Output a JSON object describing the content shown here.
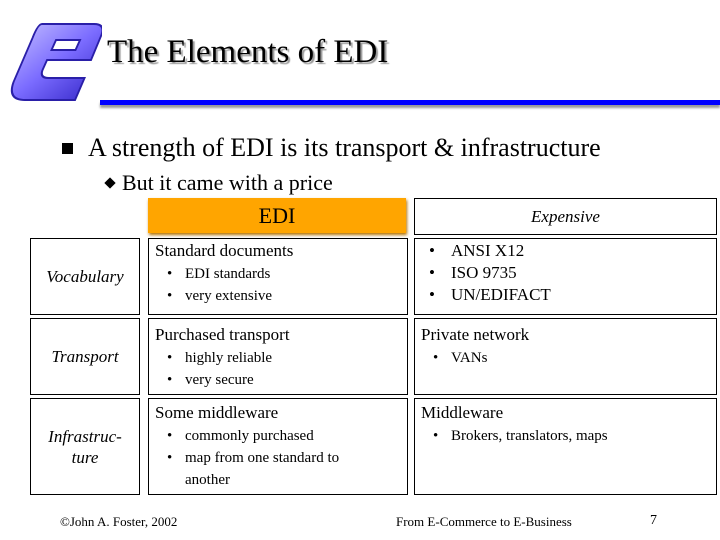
{
  "slide": {
    "title": "The Elements of EDI",
    "bullet_main": "A strength of EDI is its transport & infrastructure",
    "bullet_sub": "But it came with a price",
    "logo_letter": "e"
  },
  "table": {
    "col_edi_header": "EDI",
    "col_expensive_header": "Expensive",
    "rows": [
      {
        "label": "Vocabulary",
        "edi_head": "Standard documents",
        "edi_items": [
          "EDI standards",
          "very extensive"
        ],
        "exp_head": "",
        "exp_items": [
          "ANSI X12",
          "ISO 9735",
          "UN/EDIFACT"
        ]
      },
      {
        "label": "Transport",
        "edi_head": "Purchased transport",
        "edi_items": [
          "highly reliable",
          "very secure"
        ],
        "exp_head": "Private network",
        "exp_items": [
          "VANs"
        ]
      },
      {
        "label_line1": "Infrastruc-",
        "label_line2": "ture",
        "edi_head": "Some middleware",
        "edi_items": [
          "commonly purchased",
          "map from one standard to another"
        ],
        "exp_head": "Middleware",
        "exp_items": [
          "Brokers, translators, maps"
        ]
      }
    ]
  },
  "footer": {
    "left": "©John A. Foster,  2002",
    "center": "From E-Commerce to E-Business",
    "page": "7"
  },
  "colors": {
    "rule": "#0000ff",
    "edi_header": "#ffa500",
    "logo": "#7b6cff"
  }
}
